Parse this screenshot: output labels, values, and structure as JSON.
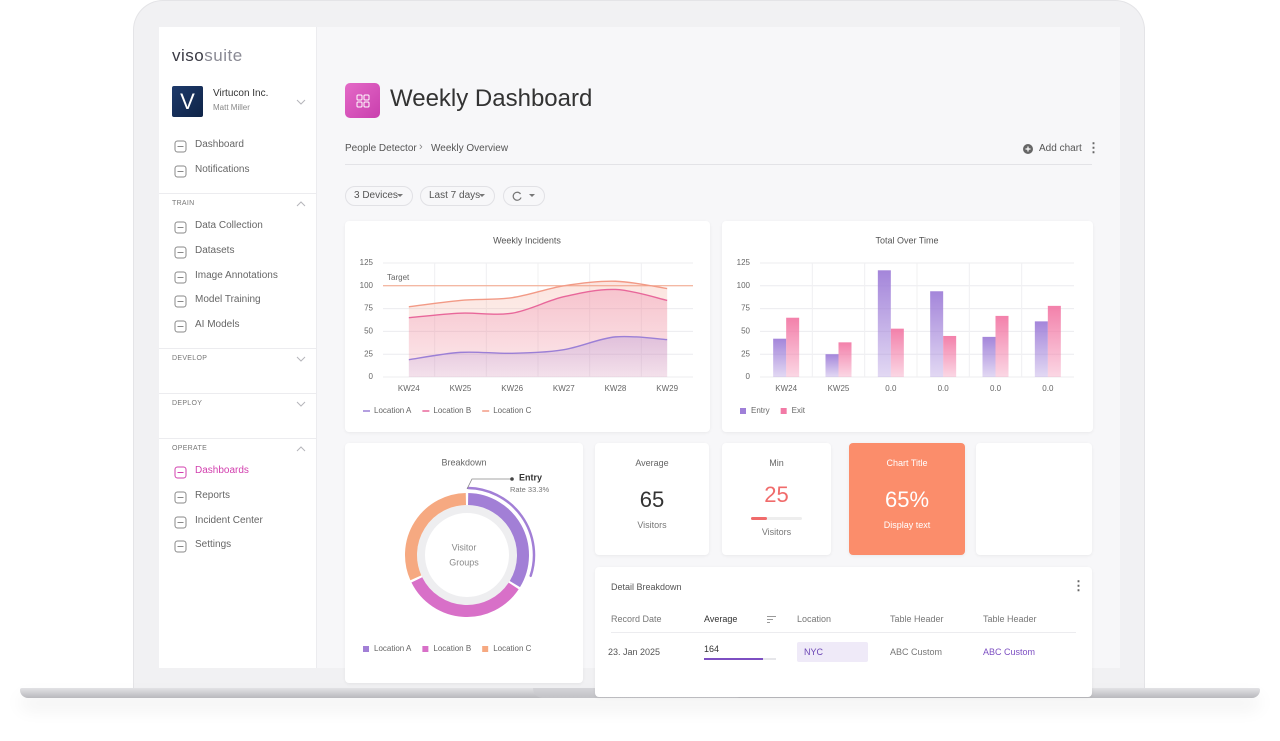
{
  "sidebar": {
    "logo": {
      "bold": "viso",
      "light": "suite"
    },
    "org": {
      "initial": "V",
      "name": "Virtucon Inc.",
      "user": "Matt Miller"
    },
    "nav": [
      "Dashboard",
      "Notifications"
    ],
    "sections": [
      {
        "title": "TRAIN",
        "items": [
          "Data Collection",
          "Datasets",
          "Image Annotations",
          "Model Training",
          "AI Models"
        ]
      },
      {
        "title": "DEVELOP"
      },
      {
        "title": "DEPLOY"
      },
      {
        "title": "OPERATE",
        "items": [
          "Dashboards",
          "Reports",
          "Incident Center",
          "Settings"
        ],
        "active": 0
      }
    ]
  },
  "header": {
    "title": "Weekly Dashboard",
    "breadcrumb": [
      "People Detector",
      "Weekly Overview"
    ],
    "action": "Add chart"
  },
  "filters": [
    "3 Devices",
    "Last 7 days"
  ],
  "chart_data": [
    {
      "type": "line",
      "title": "Weekly Incidents",
      "categories": [
        "KW24",
        "KW25",
        "KW26",
        "KW27",
        "KW28",
        "KW29"
      ],
      "ylim": [
        0,
        125
      ],
      "yticks": [
        0,
        25,
        50,
        75,
        100,
        125
      ],
      "grid": true,
      "target": {
        "value": 100,
        "label": "Target"
      },
      "series": [
        {
          "name": "Location A",
          "color": "#9b7fd6",
          "values": [
            19,
            27,
            26,
            30,
            44,
            41
          ]
        },
        {
          "name": "Location B",
          "color": "#e8679a",
          "values": [
            65,
            70,
            70,
            88,
            96,
            84
          ]
        },
        {
          "name": "Location C",
          "color": "#f29a86",
          "values": [
            77,
            84,
            87,
            100,
            105,
            97
          ]
        }
      ]
    },
    {
      "type": "bar",
      "title": "Total Over Time",
      "categories": [
        "KW24",
        "KW25",
        "0.0",
        "0.0",
        "0.0",
        "0.0"
      ],
      "ylim": [
        0,
        125
      ],
      "yticks": [
        0,
        25,
        50,
        75,
        100,
        125
      ],
      "grid": true,
      "series": [
        {
          "name": "Entry",
          "color": "#9f7fd8",
          "values": [
            42,
            25,
            117,
            94,
            44,
            61
          ]
        },
        {
          "name": "Exit",
          "color": "#f27aa6",
          "values": [
            65,
            38,
            53,
            45,
            67,
            78
          ]
        }
      ]
    },
    {
      "type": "pie",
      "title": "Breakdown",
      "center_label": [
        "Visitor",
        "Groups"
      ],
      "annotation": {
        "title": "Entry",
        "text": "Rate 33.3%"
      },
      "categories": [
        "Location A",
        "Location B",
        "Location C"
      ],
      "values": [
        34,
        34,
        32
      ],
      "colors": [
        "#a27fd6",
        "#d870c8",
        "#f6a981"
      ]
    }
  ],
  "kpis": [
    {
      "title": "Average",
      "value": 65,
      "unit": "Visitors"
    },
    {
      "title": "Min",
      "value": 25,
      "unit": "Visitors"
    },
    {
      "title": "Chart Title",
      "value": "65%",
      "unit": "Display text"
    }
  ],
  "table": {
    "title": "Detail Breakdown",
    "headers": [
      "Record Date",
      "Average",
      "Location",
      "Table Header",
      "Table Header"
    ],
    "rows": [
      [
        "23. Jan 2025",
        164,
        "NYC",
        "ABC Custom",
        "ABC Custom"
      ]
    ]
  }
}
